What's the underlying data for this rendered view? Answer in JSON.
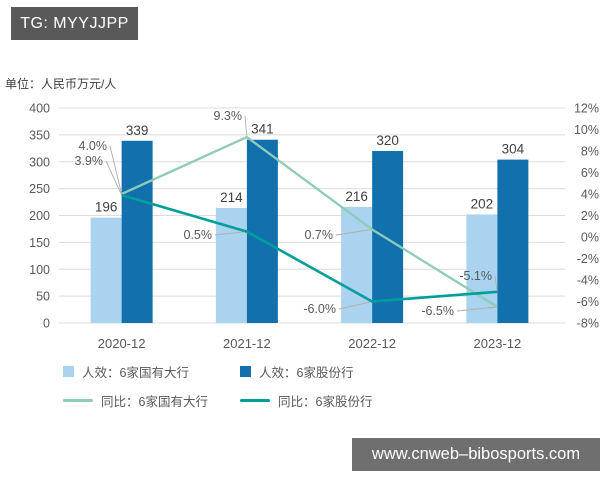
{
  "watermark_tag": {
    "text": "TG: MYYJJPP",
    "bg": "#595959"
  },
  "unit_label": "单位：人民币万元/人",
  "footer": {
    "text": "www.cnweb–bibosports.com",
    "bg": "#6F6F6F"
  },
  "chart_data": {
    "type": "bar+line",
    "categories": [
      "2020-12",
      "2021-12",
      "2022-12",
      "2023-12"
    ],
    "bar_series": [
      {
        "name": "人效：6家国有大行",
        "color": "#A9D3EE",
        "values": [
          196,
          214,
          216,
          202
        ],
        "value_labels": [
          "196",
          "214",
          "216",
          "202"
        ]
      },
      {
        "name": "人效：6家股份行",
        "color": "#1271AD",
        "values": [
          339,
          341,
          320,
          304
        ],
        "value_labels": [
          "339",
          "341",
          "320",
          "304"
        ]
      }
    ],
    "line_series": [
      {
        "name": "同比：6家国有大行",
        "color": "#8FCBB9",
        "values_pct": [
          4.0,
          9.3,
          0.7,
          -6.5
        ],
        "point_labels": [
          "4.0%",
          "9.3%",
          "0.7%",
          "-6.5%"
        ]
      },
      {
        "name": "同比：6家股份行",
        "color": "#009E9B",
        "values_pct": [
          3.9,
          0.5,
          -6.0,
          -5.1
        ],
        "point_labels": [
          "3.9%",
          "0.5%",
          "-6.0%",
          "-5.1%"
        ]
      }
    ],
    "left_axis": {
      "min": 0,
      "max": 400,
      "step": 50,
      "tick_labels": [
        "400",
        "350",
        "300",
        "250",
        "200",
        "150",
        "100",
        "50",
        "0"
      ]
    },
    "right_axis": {
      "min": -8,
      "max": 12,
      "step": 2,
      "tick_labels": [
        "12%",
        "10%",
        "8%",
        "6%",
        "4%",
        "2%",
        "0%",
        "-2%",
        "-4%",
        "-6%",
        "-8%"
      ]
    },
    "grid": true,
    "legend_position": "bottom-left",
    "colors": {
      "grid": "#DCDCDC",
      "axis_text": "#595959",
      "data_label_text": "#404040",
      "percent_label_text": "#595959",
      "leader_line": "#B0B0B0"
    }
  }
}
